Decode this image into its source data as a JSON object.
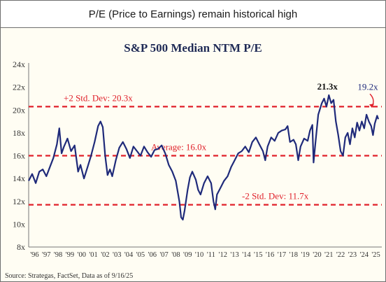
{
  "banner": {
    "title": "P/E (Price to Earnings) remain historical high"
  },
  "chart_data": {
    "type": "line",
    "title": "S&P 500 Median NTM P/E",
    "xlabel": "",
    "ylabel": "",
    "ylim": [
      8,
      24
    ],
    "yticks": [
      "8x",
      "10x",
      "12x",
      "14x",
      "16x",
      "18x",
      "20x",
      "22x",
      "24x"
    ],
    "yvals": [
      8,
      10,
      12,
      14,
      16,
      18,
      20,
      22,
      24
    ],
    "xlim": [
      1996,
      2026
    ],
    "xticks": [
      "'96",
      "'97",
      "'98",
      "'99",
      "'00",
      "'01",
      "'02",
      "'03",
      "'04",
      "'05",
      "'06",
      "'07",
      "'08",
      "'09",
      "'10",
      "'11",
      "'12",
      "'13",
      "'14",
      "'15",
      "'16",
      "'17",
      "'18",
      "'19",
      "'20",
      "'21",
      "'22",
      "'23",
      "'24",
      "'25"
    ],
    "grid": false,
    "series": [
      {
        "color": "#1f2a7a",
        "points": [
          [
            1996.0,
            13.8
          ],
          [
            1996.3,
            14.4
          ],
          [
            1996.6,
            13.6
          ],
          [
            1996.9,
            14.6
          ],
          [
            1997.2,
            14.8
          ],
          [
            1997.5,
            14.2
          ],
          [
            1997.8,
            15.0
          ],
          [
            1998.1,
            15.8
          ],
          [
            1998.4,
            17.0
          ],
          [
            1998.6,
            18.4
          ],
          [
            1998.8,
            16.2
          ],
          [
            1999.0,
            16.8
          ],
          [
            1999.3,
            17.5
          ],
          [
            1999.6,
            16.4
          ],
          [
            1999.9,
            16.9
          ],
          [
            2000.2,
            14.6
          ],
          [
            2000.4,
            15.2
          ],
          [
            2000.7,
            14.0
          ],
          [
            2001.0,
            15.0
          ],
          [
            2001.3,
            16.0
          ],
          [
            2001.6,
            17.2
          ],
          [
            2001.9,
            18.6
          ],
          [
            2002.1,
            19.0
          ],
          [
            2002.3,
            18.5
          ],
          [
            2002.5,
            16.0
          ],
          [
            2002.7,
            14.3
          ],
          [
            2002.9,
            14.8
          ],
          [
            2003.1,
            14.2
          ],
          [
            2003.4,
            15.6
          ],
          [
            2003.7,
            16.7
          ],
          [
            2004.0,
            17.2
          ],
          [
            2004.3,
            16.6
          ],
          [
            2004.6,
            15.8
          ],
          [
            2004.9,
            16.8
          ],
          [
            2005.2,
            16.4
          ],
          [
            2005.5,
            16.0
          ],
          [
            2005.8,
            16.8
          ],
          [
            2006.1,
            16.3
          ],
          [
            2006.4,
            15.9
          ],
          [
            2006.7,
            16.5
          ],
          [
            2007.0,
            16.6
          ],
          [
            2007.3,
            16.9
          ],
          [
            2007.6,
            16.2
          ],
          [
            2007.9,
            15.2
          ],
          [
            2008.2,
            14.6
          ],
          [
            2008.5,
            13.8
          ],
          [
            2008.8,
            12.0
          ],
          [
            2008.95,
            10.6
          ],
          [
            2009.1,
            10.4
          ],
          [
            2009.25,
            11.2
          ],
          [
            2009.5,
            13.0
          ],
          [
            2009.7,
            14.1
          ],
          [
            2009.9,
            14.6
          ],
          [
            2010.2,
            13.9
          ],
          [
            2010.4,
            13.0
          ],
          [
            2010.6,
            12.6
          ],
          [
            2010.9,
            13.6
          ],
          [
            2011.2,
            14.2
          ],
          [
            2011.5,
            13.6
          ],
          [
            2011.7,
            12.0
          ],
          [
            2011.85,
            11.3
          ],
          [
            2012.0,
            12.6
          ],
          [
            2012.3,
            13.2
          ],
          [
            2012.6,
            13.8
          ],
          [
            2012.9,
            14.2
          ],
          [
            2013.2,
            15.0
          ],
          [
            2013.5,
            15.6
          ],
          [
            2013.8,
            16.2
          ],
          [
            2014.1,
            16.4
          ],
          [
            2014.4,
            16.8
          ],
          [
            2014.7,
            16.3
          ],
          [
            2015.0,
            17.2
          ],
          [
            2015.3,
            17.6
          ],
          [
            2015.6,
            17.0
          ],
          [
            2015.9,
            16.4
          ],
          [
            2016.1,
            15.6
          ],
          [
            2016.3,
            16.8
          ],
          [
            2016.6,
            17.6
          ],
          [
            2016.9,
            17.3
          ],
          [
            2017.2,
            18.0
          ],
          [
            2017.5,
            18.2
          ],
          [
            2017.8,
            18.3
          ],
          [
            2018.0,
            18.6
          ],
          [
            2018.2,
            17.2
          ],
          [
            2018.5,
            17.4
          ],
          [
            2018.7,
            17.0
          ],
          [
            2018.9,
            15.6
          ],
          [
            2019.1,
            16.8
          ],
          [
            2019.4,
            17.5
          ],
          [
            2019.7,
            17.3
          ],
          [
            2019.9,
            18.2
          ],
          [
            2020.1,
            18.7
          ],
          [
            2020.2,
            15.4
          ],
          [
            2020.35,
            17.0
          ],
          [
            2020.6,
            19.6
          ],
          [
            2020.9,
            20.6
          ],
          [
            2021.1,
            21.0
          ],
          [
            2021.3,
            20.3
          ],
          [
            2021.5,
            21.3
          ],
          [
            2021.7,
            20.6
          ],
          [
            2021.9,
            20.9
          ],
          [
            2022.1,
            19.0
          ],
          [
            2022.3,
            17.8
          ],
          [
            2022.5,
            16.4
          ],
          [
            2022.7,
            16.0
          ],
          [
            2022.9,
            17.6
          ],
          [
            2023.1,
            18.0
          ],
          [
            2023.3,
            17.0
          ],
          [
            2023.5,
            18.4
          ],
          [
            2023.7,
            17.6
          ],
          [
            2023.9,
            18.9
          ],
          [
            2024.1,
            18.2
          ],
          [
            2024.3,
            19.0
          ],
          [
            2024.5,
            18.4
          ],
          [
            2024.7,
            19.6
          ],
          [
            2024.9,
            19.0
          ],
          [
            2025.1,
            18.6
          ],
          [
            2025.25,
            17.8
          ],
          [
            2025.4,
            18.8
          ],
          [
            2025.6,
            19.5
          ],
          [
            2025.7,
            19.2
          ]
        ]
      }
    ],
    "reference_lines": [
      {
        "value": 20.3,
        "label": "+2 Std. Dev: 20.3x",
        "color": "#e0202a"
      },
      {
        "value": 16.0,
        "label": "Average: 16.0x",
        "color": "#e0202a"
      },
      {
        "value": 11.7,
        "label": "-2 Std. Dev: 11.7x",
        "color": "#e0202a"
      }
    ],
    "annotations": [
      {
        "text": "21.3x",
        "x": 2021.5,
        "y": 21.3
      },
      {
        "text": "19.2x",
        "x": 2025.7,
        "y": 19.2
      }
    ],
    "source": "Source: Strategas, FactSet, Data as of 9/16/25"
  }
}
